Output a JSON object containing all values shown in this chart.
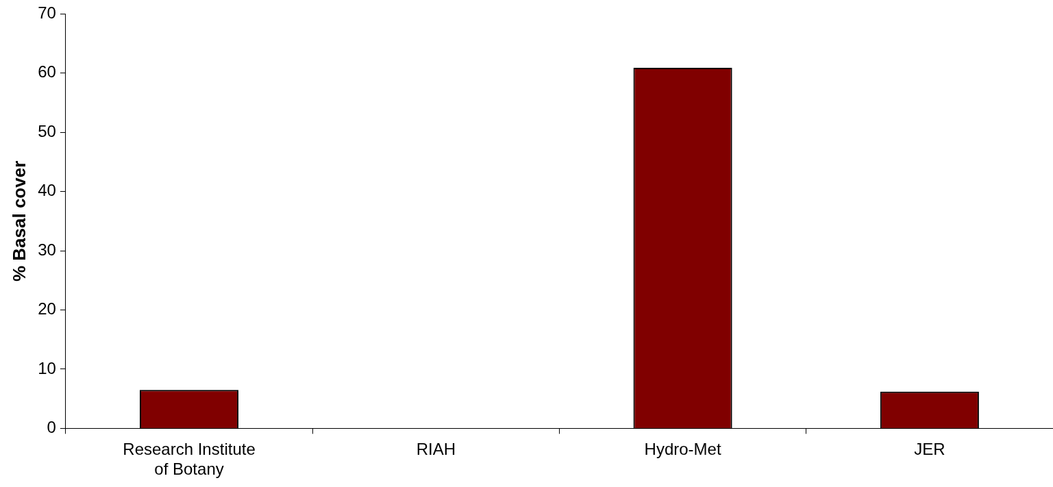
{
  "chart_data": {
    "type": "bar",
    "ylabel": "% Basal cover",
    "categories": [
      "Research Institute of Botany",
      "RIAH",
      "Hydro-Met",
      "JER"
    ],
    "values": [
      6.5,
      0,
      60.9,
      6.2
    ],
    "color": "#800000",
    "ylim": [
      0,
      70
    ],
    "yticks": [
      0,
      10,
      20,
      30,
      40,
      50,
      60,
      70
    ],
    "grid": false,
    "legend": false
  }
}
